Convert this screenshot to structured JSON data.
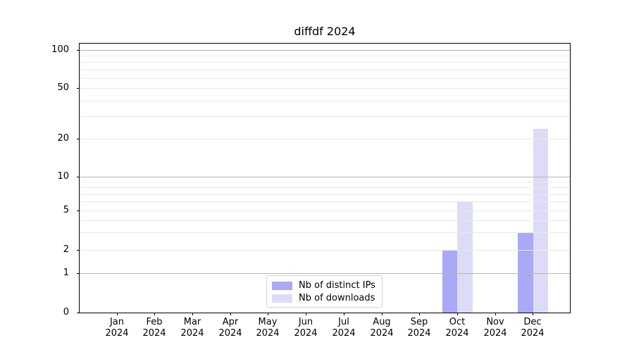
{
  "chart_data": {
    "type": "bar",
    "title": "diffdf 2024",
    "categories": [
      {
        "month": "Jan",
        "year": "2024"
      },
      {
        "month": "Feb",
        "year": "2024"
      },
      {
        "month": "Mar",
        "year": "2024"
      },
      {
        "month": "Apr",
        "year": "2024"
      },
      {
        "month": "May",
        "year": "2024"
      },
      {
        "month": "Jun",
        "year": "2024"
      },
      {
        "month": "Jul",
        "year": "2024"
      },
      {
        "month": "Aug",
        "year": "2024"
      },
      {
        "month": "Sep",
        "year": "2024"
      },
      {
        "month": "Oct",
        "year": "2024"
      },
      {
        "month": "Nov",
        "year": "2024"
      },
      {
        "month": "Dec",
        "year": "2024"
      }
    ],
    "series": [
      {
        "name": "Nb of distinct IPs",
        "color": "#a9a9f7",
        "values": [
          0,
          0,
          0,
          0,
          0,
          0,
          0,
          0,
          0,
          2,
          0,
          3
        ]
      },
      {
        "name": "Nb of downloads",
        "color": "#dcdcf8",
        "values": [
          0,
          0,
          0,
          0,
          0,
          0,
          0,
          0,
          0,
          6,
          0,
          24
        ]
      }
    ],
    "y_axis": {
      "scale": "symlog",
      "range": [
        0,
        112
      ],
      "ticks": [
        0,
        1,
        2,
        5,
        10,
        20,
        50,
        100
      ],
      "major_gridlines": [
        1,
        10,
        100
      ],
      "minor_gridlines": [
        2,
        3,
        4,
        5,
        6,
        7,
        8,
        9,
        20,
        30,
        40,
        50,
        60,
        70,
        80,
        90
      ]
    },
    "grid": "on",
    "legend_position": "inside-bottom-center"
  }
}
